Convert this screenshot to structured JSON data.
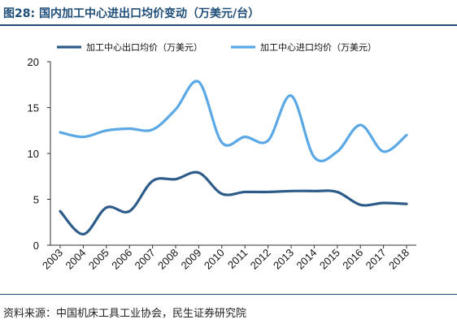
{
  "header": {
    "title": "图28: 国内加工中心进出口均价变动（万美元/台）"
  },
  "footer": {
    "source": "资料来源：中国机床工具工业协会，民生证券研究院"
  },
  "colors": {
    "title": "#1f4e79",
    "export": "#2e5c8a",
    "import": "#5aa8e6"
  },
  "chart_data": {
    "type": "line",
    "x": [
      "2003",
      "2004",
      "2005",
      "2006",
      "2007",
      "2008",
      "2009",
      "2010",
      "2011",
      "2012",
      "2013",
      "2014",
      "2015",
      "2016",
      "2017",
      "2018"
    ],
    "series": [
      {
        "name": "加工中心出口均价（万美元）",
        "color": "#2e5c8a",
        "values": [
          3.7,
          1.2,
          4.1,
          3.7,
          7.0,
          7.2,
          7.9,
          5.6,
          5.8,
          5.8,
          5.9,
          5.9,
          5.8,
          4.4,
          4.6,
          4.5
        ]
      },
      {
        "name": "加工中心进口均价（万美元）",
        "color": "#5aa8e6",
        "values": [
          12.3,
          11.8,
          12.5,
          12.7,
          12.6,
          14.8,
          17.8,
          11.2,
          11.8,
          11.4,
          16.3,
          9.6,
          10.2,
          13.1,
          10.2,
          12.0
        ]
      }
    ],
    "ylim": [
      0,
      20
    ],
    "yticks": [
      "0",
      "5",
      "10",
      "15",
      "20"
    ],
    "legend": "top"
  }
}
